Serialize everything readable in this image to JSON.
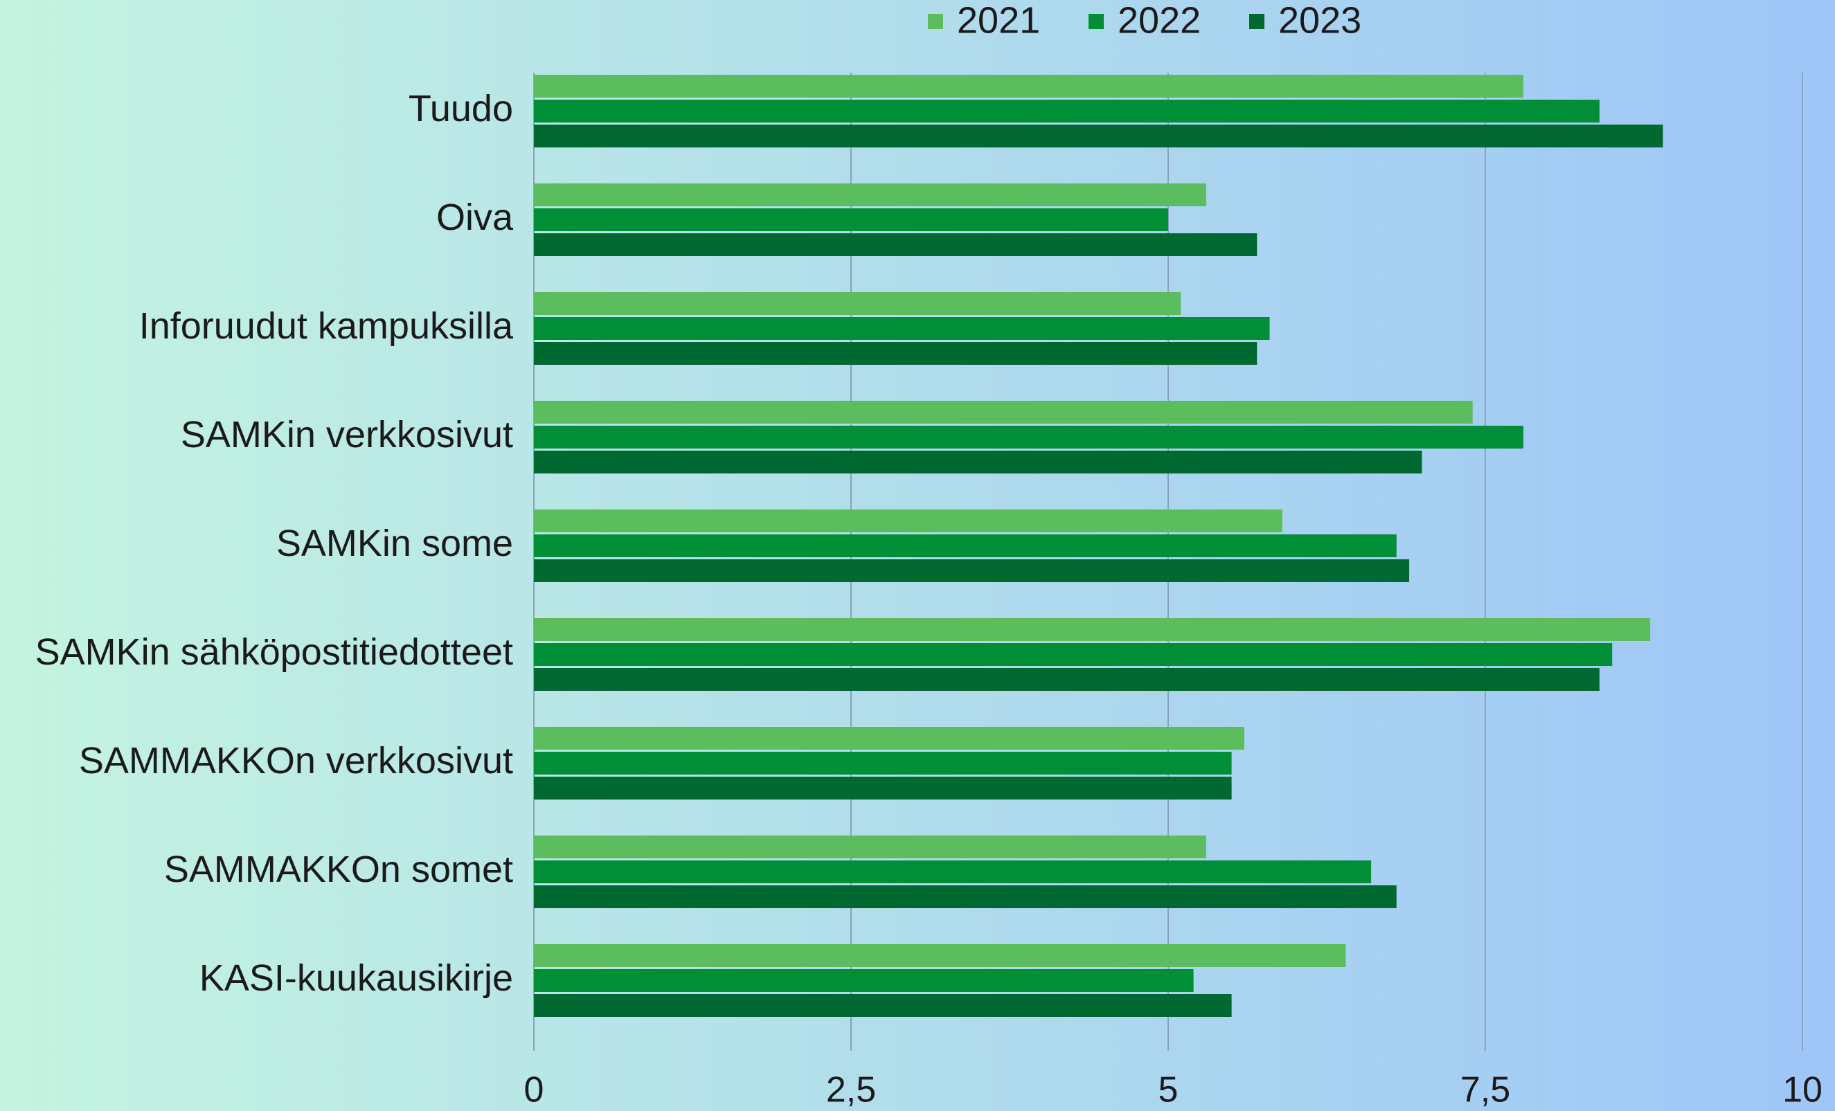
{
  "chart_data": {
    "type": "hbar",
    "categories": [
      "Tuudo",
      "Oiva",
      "Inforuudut kampuksilla",
      "SAMKin verkkosivut",
      "SAMKin some",
      "SAMKin sähköpostitiedotteet",
      "SAMMAKKOn verkkosivut",
      "SAMMAKKOn somet",
      "KASI-kuukausikirje"
    ],
    "series": [
      {
        "name": "2021",
        "color": "#5cbd5e",
        "values": [
          7.8,
          5.3,
          5.1,
          7.4,
          5.9,
          8.8,
          5.6,
          5.3,
          6.4
        ]
      },
      {
        "name": "2022",
        "color": "#008f36",
        "values": [
          8.4,
          5.0,
          5.8,
          7.8,
          6.8,
          8.5,
          5.5,
          6.6,
          5.2
        ]
      },
      {
        "name": "2023",
        "color": "#006831",
        "values": [
          8.9,
          5.7,
          5.7,
          7.0,
          6.9,
          8.4,
          5.5,
          6.8,
          5.5
        ]
      }
    ],
    "xlim": [
      0,
      10
    ],
    "xticks": [
      0,
      {
        "value": 2.5,
        "label": "2,5"
      },
      5,
      {
        "value": 7.5,
        "label": "7,5"
      },
      10
    ],
    "grid": true,
    "legend": "top"
  }
}
